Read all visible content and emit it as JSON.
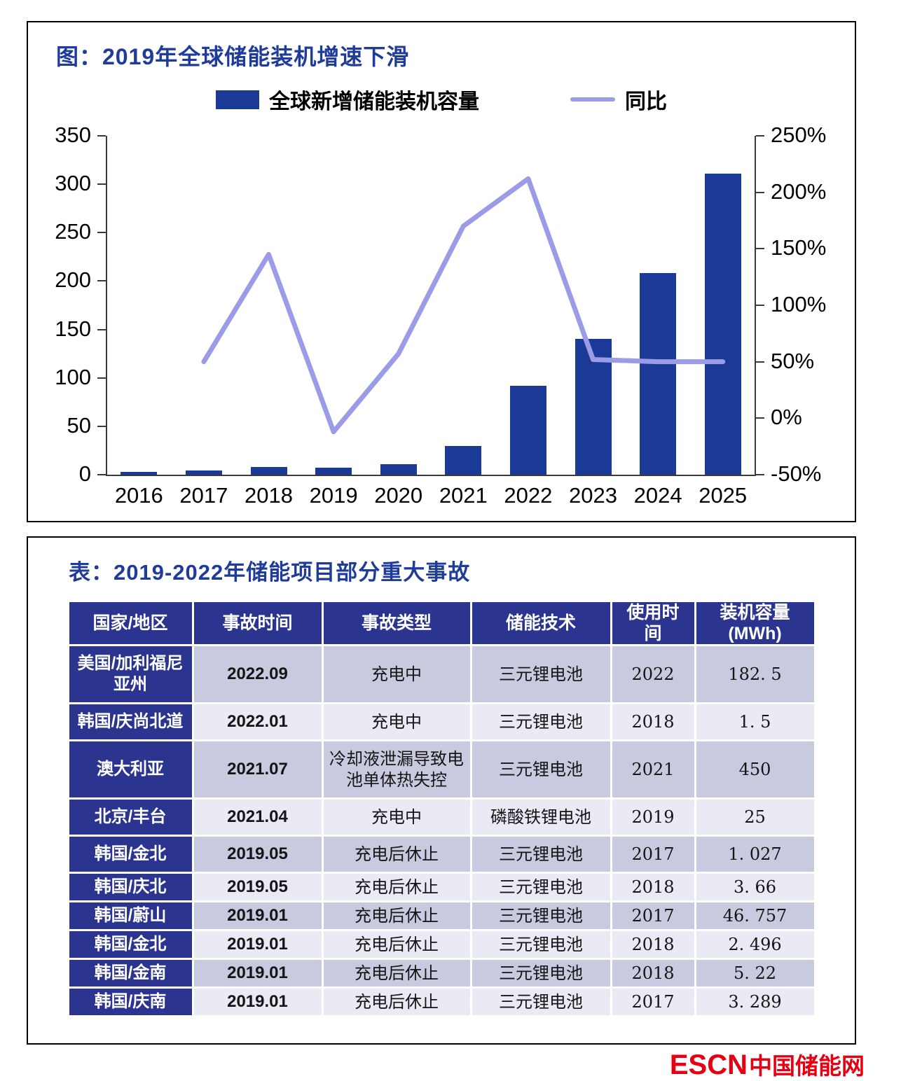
{
  "chart": {
    "title": "图：2019年全球储能装机增速下滑",
    "legend": {
      "bars": "全球新增储能装机容量",
      "line": "同比"
    },
    "chart_data": {
      "type": "bar",
      "subtype": "combo bar+line, dual y-axis",
      "categories": [
        "2016",
        "2017",
        "2018",
        "2019",
        "2020",
        "2021",
        "2022",
        "2023",
        "2024",
        "2025"
      ],
      "series": [
        {
          "name": "全球新增储能装机容量",
          "type": "bar",
          "axis": "left",
          "values": [
            3,
            4,
            8,
            7,
            11,
            30,
            92,
            140,
            208,
            311
          ]
        },
        {
          "name": "同比",
          "type": "line",
          "axis": "right",
          "unit": "%",
          "values": [
            null,
            50,
            145,
            -12,
            57,
            170,
            212,
            52,
            50,
            50
          ]
        }
      ],
      "left_axis": {
        "range": [
          0,
          350
        ],
        "ticks": [
          0,
          50,
          100,
          150,
          200,
          250,
          300,
          350
        ]
      },
      "right_axis": {
        "range": [
          -50,
          250
        ],
        "ticks": [
          -50,
          0,
          50,
          100,
          150,
          200,
          250
        ],
        "format": "percent"
      },
      "grid": false,
      "legend_position": "top"
    }
  },
  "table": {
    "title": "表：2019-2022年储能项目部分重大事故",
    "headers": [
      "国家/地区",
      "事故时间",
      "事故类型",
      "储能技术",
      "使用时\n间",
      "装机容量\n(MWh)"
    ],
    "rows": [
      [
        "美国/加利福尼亚州",
        "2022.09",
        "充电中",
        "三元锂电池",
        "2022",
        "182. 5"
      ],
      [
        "韩国/庆尚北道",
        "2022.01",
        "充电中",
        "三元锂电池",
        "2018",
        "1. 5"
      ],
      [
        "澳大利亚",
        "2021.07",
        "冷却液泄漏导致电池单体热失控",
        "三元锂电池",
        "2021",
        "450"
      ],
      [
        "北京/丰台",
        "2021.04",
        "充电中",
        "磷酸铁锂电池",
        "2019",
        "25"
      ],
      [
        "韩国/金北",
        "2019.05",
        "充电后休止",
        "三元锂电池",
        "2017",
        "1. 027"
      ],
      [
        "韩国/庆北",
        "2019.05",
        "充电后休止",
        "三元锂电池",
        "2018",
        "3. 66"
      ],
      [
        "韩国/蔚山",
        "2019.01",
        "充电后休止",
        "三元锂电池",
        "2017",
        "46. 757"
      ],
      [
        "韩国/金北",
        "2019.01",
        "充电后休止",
        "三元锂电池",
        "2018",
        "2. 496"
      ],
      [
        "韩国/金南",
        "2019.01",
        "充电后休止",
        "三元锂电池",
        "2018",
        "5. 22"
      ],
      [
        "韩国/庆南",
        "2019.01",
        "充电后休止",
        "三元锂电池",
        "2017",
        "3. 289"
      ]
    ]
  },
  "footer": {
    "logo_en": "ESCN",
    "logo_cn": "中国储能网"
  },
  "colors": {
    "bar": "#1B3A97",
    "line": "#9B9CE8",
    "title_blue": "#203C9A",
    "table_header_bg": "#2B3590",
    "row_dark": "#C8CBDF",
    "row_light": "#E9EAF3",
    "logo_red": "#E60012",
    "axis": "#3A3A3A"
  }
}
